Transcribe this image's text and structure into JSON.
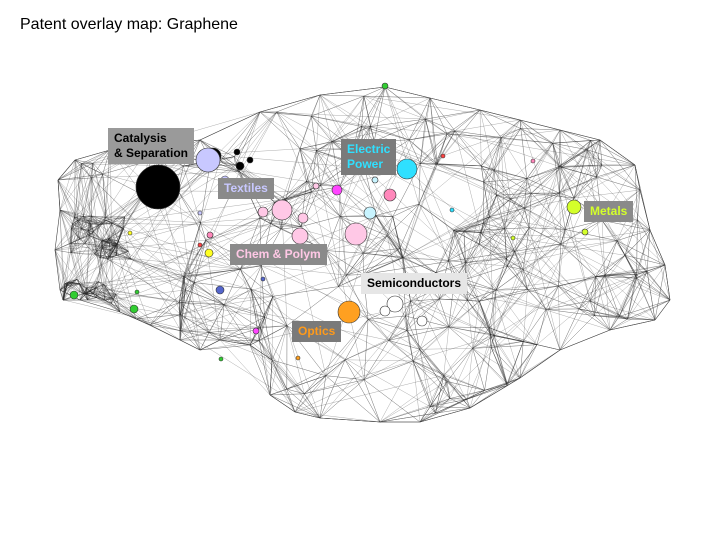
{
  "title": "Patent overlay map: Graphene",
  "labels": {
    "catalysis": {
      "text": "Catalysis\n& Separation",
      "color": "#000000",
      "bg": "#9a9a9a"
    },
    "electric": {
      "text": "Electric\nPower",
      "color": "#2fe0ff",
      "bg": "#7a7a7a"
    },
    "textiles": {
      "text": "Textiles",
      "color": "#c8c8ff",
      "bg": "#8a8a8a"
    },
    "metals": {
      "text": "Metals",
      "color": "#d4ff2a",
      "bg": "#8a8a8a"
    },
    "chem": {
      "text": "Chem & Polym",
      "color": "#ffc8e6",
      "bg": "#8a8a8a"
    },
    "semi": {
      "text": "Semiconductors",
      "color": "#000000",
      "bg": "#e6e6e6"
    },
    "optics": {
      "text": "Optics",
      "color": "#ff9a1a",
      "bg": "#7a7a7a"
    }
  },
  "colors": {
    "catalysis": "#000000",
    "textiles": "#c8c8ff",
    "chem": "#ffc8e6",
    "electric": "#2fe0ff",
    "metals": "#d4ff2a",
    "optics": "#ffa020",
    "semi": "#ffffff",
    "green": "#32cd32",
    "magenta": "#ff44ff",
    "yellow": "#ffff22",
    "blue": "#5566cc",
    "red": "#ff4444",
    "pink": "#ff88bb",
    "lightcyan": "#c8f4ff",
    "edge": "#2a2a2a"
  }
}
